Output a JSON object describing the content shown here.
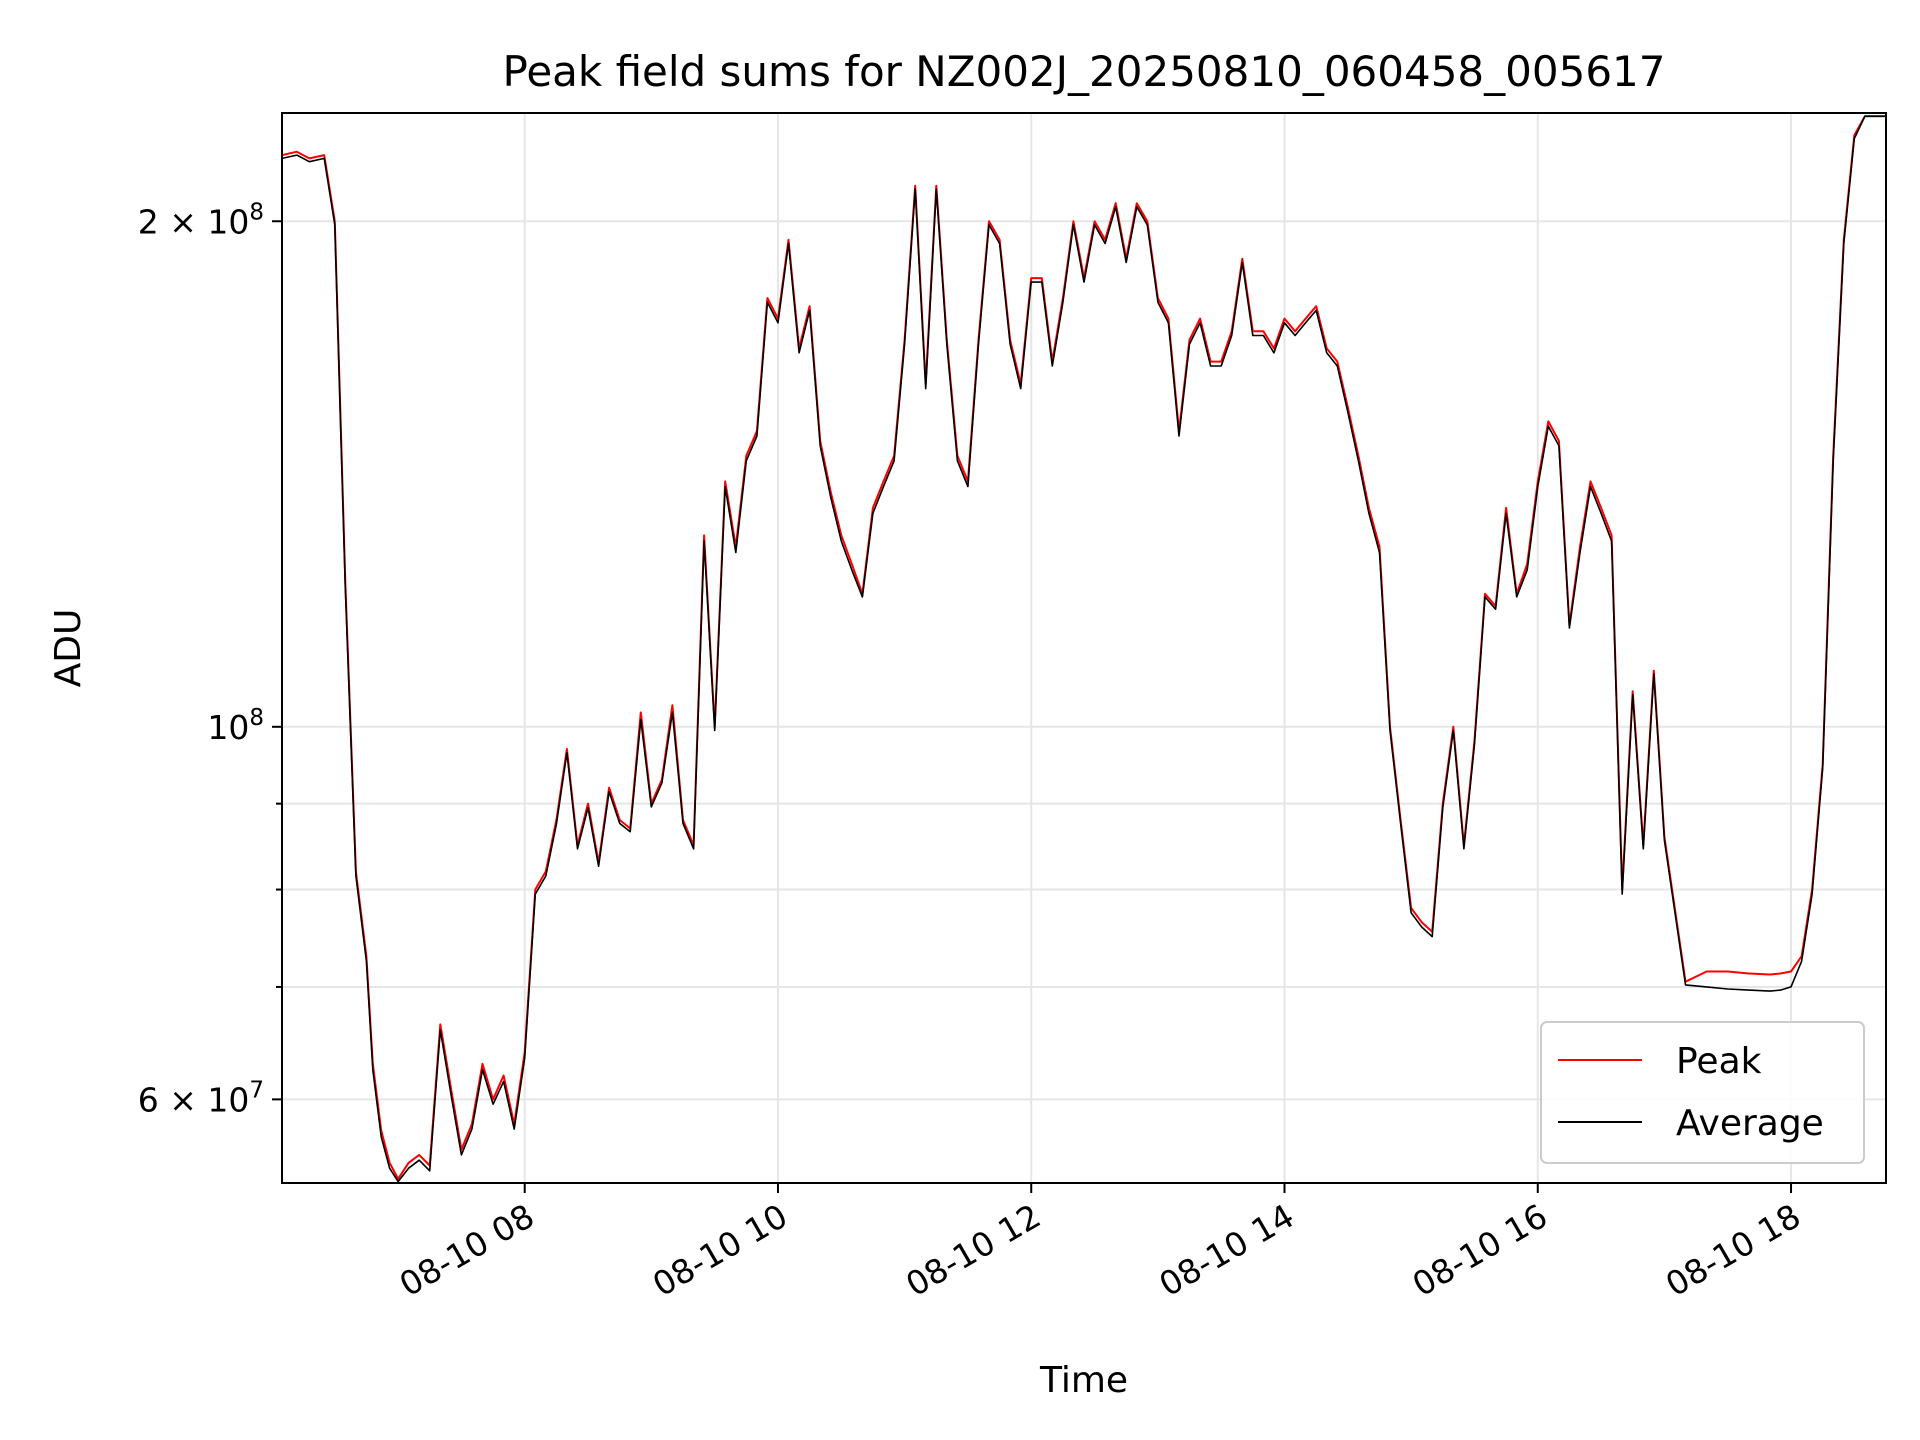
{
  "chart_data": {
    "type": "line",
    "title": "Peak field sums for NZ002J_20250810_060458_005617",
    "xlabel": "Time",
    "ylabel": "ADU",
    "y_scale": "log",
    "xlim": [
      "2025-08-10 06:05",
      "2025-08-10 18:45"
    ],
    "ylim": [
      53500000,
      232000000
    ],
    "x_ticks": [
      "2025-08-10 08:00",
      "2025-08-10 10:00",
      "2025-08-10 12:00",
      "2025-08-10 14:00",
      "2025-08-10 16:00",
      "2025-08-10 18:00"
    ],
    "x_tick_labels": [
      "08-10 08",
      "08-10 10",
      "08-10 12",
      "08-10 14",
      "08-10 16",
      "08-10 18"
    ],
    "y_major_ticks": [
      {
        "value": 200000000,
        "mantissa": "2",
        "exponent": "8"
      },
      {
        "value": 100000000,
        "mantissa": "",
        "exponent": "8"
      },
      {
        "value": 60000000,
        "mantissa": "6",
        "exponent": "7"
      }
    ],
    "y_minor_ticks": [
      70000000,
      80000000,
      90000000
    ],
    "grid": true,
    "legend_position": "lower-right",
    "series": [
      {
        "name": "Peak",
        "color": "#ff0000",
        "x": [
          "2025-08-10 06:05",
          "2025-08-10 06:12",
          "2025-08-10 06:18",
          "2025-08-10 06:25",
          "2025-08-10 06:30",
          "2025-08-10 06:35",
          "2025-08-10 06:40",
          "2025-08-10 06:45",
          "2025-08-10 06:48",
          "2025-08-10 06:52",
          "2025-08-10 06:56",
          "2025-08-10 07:00",
          "2025-08-10 07:05",
          "2025-08-10 07:10",
          "2025-08-10 07:15",
          "2025-08-10 07:20",
          "2025-08-10 07:25",
          "2025-08-10 07:30",
          "2025-08-10 07:35",
          "2025-08-10 07:40",
          "2025-08-10 07:45",
          "2025-08-10 07:50",
          "2025-08-10 07:55",
          "2025-08-10 08:00",
          "2025-08-10 08:05",
          "2025-08-10 08:10",
          "2025-08-10 08:15",
          "2025-08-10 08:20",
          "2025-08-10 08:25",
          "2025-08-10 08:30",
          "2025-08-10 08:35",
          "2025-08-10 08:40",
          "2025-08-10 08:45",
          "2025-08-10 08:50",
          "2025-08-10 08:55",
          "2025-08-10 09:00",
          "2025-08-10 09:05",
          "2025-08-10 09:10",
          "2025-08-10 09:15",
          "2025-08-10 09:20",
          "2025-08-10 09:25",
          "2025-08-10 09:30",
          "2025-08-10 09:35",
          "2025-08-10 09:40",
          "2025-08-10 09:45",
          "2025-08-10 09:50",
          "2025-08-10 09:55",
          "2025-08-10 10:00",
          "2025-08-10 10:05",
          "2025-08-10 10:10",
          "2025-08-10 10:15",
          "2025-08-10 10:20",
          "2025-08-10 10:25",
          "2025-08-10 10:30",
          "2025-08-10 10:35",
          "2025-08-10 10:40",
          "2025-08-10 10:45",
          "2025-08-10 10:50",
          "2025-08-10 10:55",
          "2025-08-10 11:00",
          "2025-08-10 11:05",
          "2025-08-10 11:10",
          "2025-08-10 11:15",
          "2025-08-10 11:20",
          "2025-08-10 11:25",
          "2025-08-10 11:30",
          "2025-08-10 11:35",
          "2025-08-10 11:40",
          "2025-08-10 11:45",
          "2025-08-10 11:50",
          "2025-08-10 11:55",
          "2025-08-10 12:00",
          "2025-08-10 12:05",
          "2025-08-10 12:10",
          "2025-08-10 12:15",
          "2025-08-10 12:20",
          "2025-08-10 12:25",
          "2025-08-10 12:30",
          "2025-08-10 12:35",
          "2025-08-10 12:40",
          "2025-08-10 12:45",
          "2025-08-10 12:50",
          "2025-08-10 12:55",
          "2025-08-10 13:00",
          "2025-08-10 13:05",
          "2025-08-10 13:10",
          "2025-08-10 13:15",
          "2025-08-10 13:20",
          "2025-08-10 13:25",
          "2025-08-10 13:30",
          "2025-08-10 13:35",
          "2025-08-10 13:40",
          "2025-08-10 13:45",
          "2025-08-10 13:50",
          "2025-08-10 13:55",
          "2025-08-10 14:00",
          "2025-08-10 14:05",
          "2025-08-10 14:10",
          "2025-08-10 14:15",
          "2025-08-10 14:20",
          "2025-08-10 14:25",
          "2025-08-10 14:30",
          "2025-08-10 14:35",
          "2025-08-10 14:40",
          "2025-08-10 14:45",
          "2025-08-10 14:50",
          "2025-08-10 14:55",
          "2025-08-10 15:00",
          "2025-08-10 15:05",
          "2025-08-10 15:10",
          "2025-08-10 15:15",
          "2025-08-10 15:20",
          "2025-08-10 15:25",
          "2025-08-10 15:30",
          "2025-08-10 15:35",
          "2025-08-10 15:40",
          "2025-08-10 15:45",
          "2025-08-10 15:50",
          "2025-08-10 15:55",
          "2025-08-10 16:00",
          "2025-08-10 16:05",
          "2025-08-10 16:10",
          "2025-08-10 16:15",
          "2025-08-10 16:20",
          "2025-08-10 16:25",
          "2025-08-10 16:30",
          "2025-08-10 16:35",
          "2025-08-10 16:40",
          "2025-08-10 16:45",
          "2025-08-10 16:50",
          "2025-08-10 16:55",
          "2025-08-10 17:00",
          "2025-08-10 17:10",
          "2025-08-10 17:20",
          "2025-08-10 17:30",
          "2025-08-10 17:40",
          "2025-08-10 17:50",
          "2025-08-10 17:55",
          "2025-08-10 18:00",
          "2025-08-10 18:05",
          "2025-08-10 18:10",
          "2025-08-10 18:15",
          "2025-08-10 18:20",
          "2025-08-10 18:25",
          "2025-08-10 18:30",
          "2025-08-10 18:35",
          "2025-08-10 18:45"
        ],
        "y": [
          219000000,
          220000000,
          218000000,
          219000000,
          200000000,
          122000000,
          82000000,
          73000000,
          63000000,
          57500000,
          55000000,
          53800000,
          55000000,
          55600000,
          54800000,
          66500000,
          61000000,
          56000000,
          58000000,
          63000000,
          60000000,
          62000000,
          58000000,
          64000000,
          80000000,
          82000000,
          88000000,
          97000000,
          85000000,
          90000000,
          83000000,
          92000000,
          88000000,
          87000000,
          102000000,
          90000000,
          93000000,
          103000000,
          88000000,
          85000000,
          130000000,
          100000000,
          140000000,
          128000000,
          145000000,
          150000000,
          180000000,
          175000000,
          195000000,
          168000000,
          178000000,
          148000000,
          138000000,
          130000000,
          125000000,
          120000000,
          135000000,
          140000000,
          145000000,
          170000000,
          210000000,
          160000000,
          210000000,
          170000000,
          145000000,
          140000000,
          170000000,
          200000000,
          195000000,
          170000000,
          160000000,
          185000000,
          185000000,
          165000000,
          180000000,
          200000000,
          185000000,
          200000000,
          195000000,
          205000000,
          190000000,
          205000000,
          200000000,
          180000000,
          175000000,
          150000000,
          170000000,
          175000000,
          165000000,
          165000000,
          172000000,
          190000000,
          172000000,
          172000000,
          168000000,
          175000000,
          172000000,
          175000000,
          178000000,
          168000000,
          165000000,
          155000000,
          145000000,
          135000000,
          128000000,
          100000000,
          88000000,
          78000000,
          76500000,
          75500000,
          90000000,
          100000000,
          85000000,
          98000000,
          120000000,
          118000000,
          135000000,
          120000000,
          125000000,
          140000000,
          152000000,
          148000000,
          115000000,
          128000000,
          140000000,
          135000000,
          130000000,
          80000000,
          105000000,
          85000000,
          108000000,
          86000000,
          70500000,
          71500000,
          71500000,
          71300000,
          71200000,
          71300000,
          71500000,
          73000000,
          80000000,
          95000000,
          145000000,
          195000000,
          225000000,
          231000000,
          231000000
        ]
      },
      {
        "name": "Average",
        "color": "#000000",
        "x": [
          "2025-08-10 06:05",
          "2025-08-10 06:12",
          "2025-08-10 06:18",
          "2025-08-10 06:25",
          "2025-08-10 06:30",
          "2025-08-10 06:35",
          "2025-08-10 06:40",
          "2025-08-10 06:45",
          "2025-08-10 06:48",
          "2025-08-10 06:52",
          "2025-08-10 06:56",
          "2025-08-10 07:00",
          "2025-08-10 07:05",
          "2025-08-10 07:10",
          "2025-08-10 07:15",
          "2025-08-10 07:20",
          "2025-08-10 07:25",
          "2025-08-10 07:30",
          "2025-08-10 07:35",
          "2025-08-10 07:40",
          "2025-08-10 07:45",
          "2025-08-10 07:50",
          "2025-08-10 07:55",
          "2025-08-10 08:00",
          "2025-08-10 08:05",
          "2025-08-10 08:10",
          "2025-08-10 08:15",
          "2025-08-10 08:20",
          "2025-08-10 08:25",
          "2025-08-10 08:30",
          "2025-08-10 08:35",
          "2025-08-10 08:40",
          "2025-08-10 08:45",
          "2025-08-10 08:50",
          "2025-08-10 08:55",
          "2025-08-10 09:00",
          "2025-08-10 09:05",
          "2025-08-10 09:10",
          "2025-08-10 09:15",
          "2025-08-10 09:20",
          "2025-08-10 09:25",
          "2025-08-10 09:30",
          "2025-08-10 09:35",
          "2025-08-10 09:40",
          "2025-08-10 09:45",
          "2025-08-10 09:50",
          "2025-08-10 09:55",
          "2025-08-10 10:00",
          "2025-08-10 10:05",
          "2025-08-10 10:10",
          "2025-08-10 10:15",
          "2025-08-10 10:20",
          "2025-08-10 10:25",
          "2025-08-10 10:30",
          "2025-08-10 10:35",
          "2025-08-10 10:40",
          "2025-08-10 10:45",
          "2025-08-10 10:50",
          "2025-08-10 10:55",
          "2025-08-10 11:00",
          "2025-08-10 11:05",
          "2025-08-10 11:10",
          "2025-08-10 11:15",
          "2025-08-10 11:20",
          "2025-08-10 11:25",
          "2025-08-10 11:30",
          "2025-08-10 11:35",
          "2025-08-10 11:40",
          "2025-08-10 11:45",
          "2025-08-10 11:50",
          "2025-08-10 11:55",
          "2025-08-10 12:00",
          "2025-08-10 12:05",
          "2025-08-10 12:10",
          "2025-08-10 12:15",
          "2025-08-10 12:20",
          "2025-08-10 12:25",
          "2025-08-10 12:30",
          "2025-08-10 12:35",
          "2025-08-10 12:40",
          "2025-08-10 12:45",
          "2025-08-10 12:50",
          "2025-08-10 12:55",
          "2025-08-10 13:00",
          "2025-08-10 13:05",
          "2025-08-10 13:10",
          "2025-08-10 13:15",
          "2025-08-10 13:20",
          "2025-08-10 13:25",
          "2025-08-10 13:30",
          "2025-08-10 13:35",
          "2025-08-10 13:40",
          "2025-08-10 13:45",
          "2025-08-10 13:50",
          "2025-08-10 13:55",
          "2025-08-10 14:00",
          "2025-08-10 14:05",
          "2025-08-10 14:10",
          "2025-08-10 14:15",
          "2025-08-10 14:20",
          "2025-08-10 14:25",
          "2025-08-10 14:30",
          "2025-08-10 14:35",
          "2025-08-10 14:40",
          "2025-08-10 14:45",
          "2025-08-10 14:50",
          "2025-08-10 14:55",
          "2025-08-10 15:00",
          "2025-08-10 15:05",
          "2025-08-10 15:10",
          "2025-08-10 15:15",
          "2025-08-10 15:20",
          "2025-08-10 15:25",
          "2025-08-10 15:30",
          "2025-08-10 15:35",
          "2025-08-10 15:40",
          "2025-08-10 15:45",
          "2025-08-10 15:50",
          "2025-08-10 15:55",
          "2025-08-10 16:00",
          "2025-08-10 16:05",
          "2025-08-10 16:10",
          "2025-08-10 16:15",
          "2025-08-10 16:20",
          "2025-08-10 16:25",
          "2025-08-10 16:30",
          "2025-08-10 16:35",
          "2025-08-10 16:40",
          "2025-08-10 16:45",
          "2025-08-10 16:50",
          "2025-08-10 16:55",
          "2025-08-10 17:00",
          "2025-08-10 17:10",
          "2025-08-10 17:20",
          "2025-08-10 17:30",
          "2025-08-10 17:40",
          "2025-08-10 17:50",
          "2025-08-10 17:55",
          "2025-08-10 18:00",
          "2025-08-10 18:05",
          "2025-08-10 18:10",
          "2025-08-10 18:15",
          "2025-08-10 18:20",
          "2025-08-10 18:25",
          "2025-08-10 18:30",
          "2025-08-10 18:35",
          "2025-08-10 18:45"
        ],
        "y": [
          218000000,
          219000000,
          217000000,
          218000000,
          199000000,
          121000000,
          81500000,
          72500000,
          62500000,
          57000000,
          54600000,
          53600000,
          54600000,
          55200000,
          54400000,
          66000000,
          60500000,
          55600000,
          57600000,
          62500000,
          59600000,
          61500000,
          57600000,
          63500000,
          79500000,
          81500000,
          87500000,
          96500000,
          84600000,
          89500000,
          82600000,
          91500000,
          87600000,
          86600000,
          101000000,
          89600000,
          92600000,
          102000000,
          87600000,
          84600000,
          129000000,
          99500000,
          139000000,
          127000000,
          144000000,
          149000000,
          179000000,
          174000000,
          194000000,
          167000000,
          177000000,
          147000000,
          137000000,
          129000000,
          124000000,
          119500000,
          134000000,
          139000000,
          144000000,
          169000000,
          209000000,
          159000000,
          209000000,
          169000000,
          144000000,
          139000000,
          169000000,
          199000000,
          194000000,
          169000000,
          159000000,
          184000000,
          184000000,
          164000000,
          179000000,
          199000000,
          184000000,
          199000000,
          194000000,
          204000000,
          189000000,
          204000000,
          199000000,
          179000000,
          174000000,
          149000000,
          169000000,
          174000000,
          164000000,
          164000000,
          171000000,
          189000000,
          171000000,
          171000000,
          167000000,
          174000000,
          171000000,
          174000000,
          177000000,
          167000000,
          164000000,
          154000000,
          144000000,
          134000000,
          127000000,
          99500000,
          87600000,
          77500000,
          76000000,
          75000000,
          89500000,
          99500000,
          84600000,
          97500000,
          119500000,
          117500000,
          134000000,
          119500000,
          124000000,
          139000000,
          151000000,
          147000000,
          114500000,
          127000000,
          139000000,
          134000000,
          129000000,
          79500000,
          104500000,
          84600000,
          107500000,
          85600000,
          70200000,
          70000000,
          69800000,
          69700000,
          69600000,
          69700000,
          70000000,
          72500000,
          79500000,
          94500000,
          144000000,
          194000000,
          224000000,
          231000000,
          231000000
        ]
      }
    ]
  }
}
